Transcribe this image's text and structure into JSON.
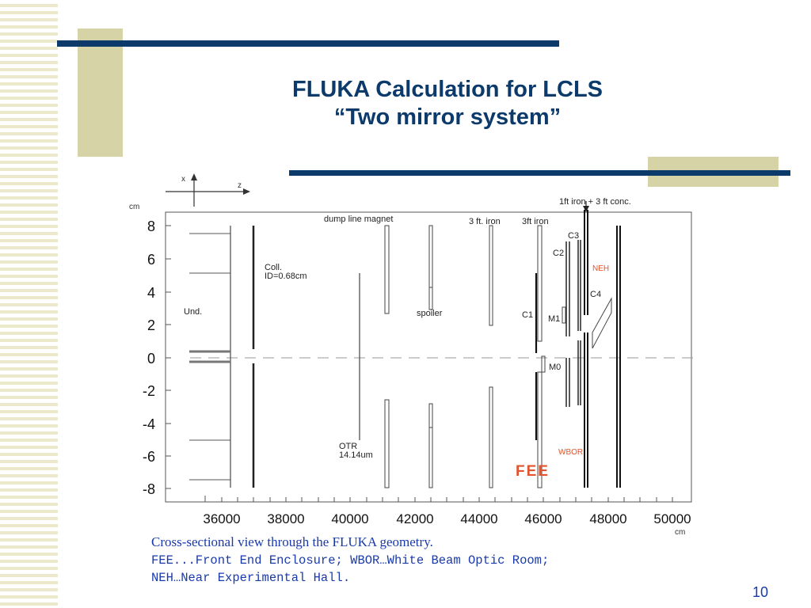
{
  "slide": {
    "title_line1": "FLUKA Calculation for LCLS",
    "title_line2": "“Two mirror system”",
    "caption_line1": "Cross-sectional view through the FLUKA geometry.",
    "caption_line2": "FEE...Front End Enclosure; WBOR…White Beam Optic Room;",
    "caption_line3": "NEH…Near Experimental Hall.",
    "page_number": "10",
    "title_color": "#0b3a6b",
    "caption_color": "#1a3aaa"
  },
  "figure": {
    "axis_indicator": {
      "x_label": "x",
      "z_label": "z"
    },
    "y_unit": "cm",
    "x_unit": "cm",
    "y_ticks": [
      "8",
      "6",
      "4",
      "2",
      "0",
      "-2",
      "-4",
      "-6",
      "-8"
    ],
    "x_ticks": [
      "36000",
      "38000",
      "40000",
      "42000",
      "44000",
      "46000",
      "48000",
      "50000"
    ],
    "labels": {
      "und": "Und.",
      "coll": "Coll.",
      "coll_id": "ID=0.68cm",
      "dump_line_magnet": "dump line magnet",
      "iron_3ft_a": "3 ft. iron",
      "iron_3ft_b": "3ft iron",
      "iron_conc": "1ft iron + 3 ft conc.",
      "spoiler": "spoiler",
      "otr": "OTR",
      "otr_val": "14.14um",
      "c1": "C1",
      "c2": "C2",
      "c3": "C3",
      "c4": "C4",
      "m0": "M0",
      "m1": "M1",
      "neh": "NEH",
      "wbor": "WBOR",
      "fee": "FEE"
    },
    "highlight_color": "#e2542d"
  }
}
